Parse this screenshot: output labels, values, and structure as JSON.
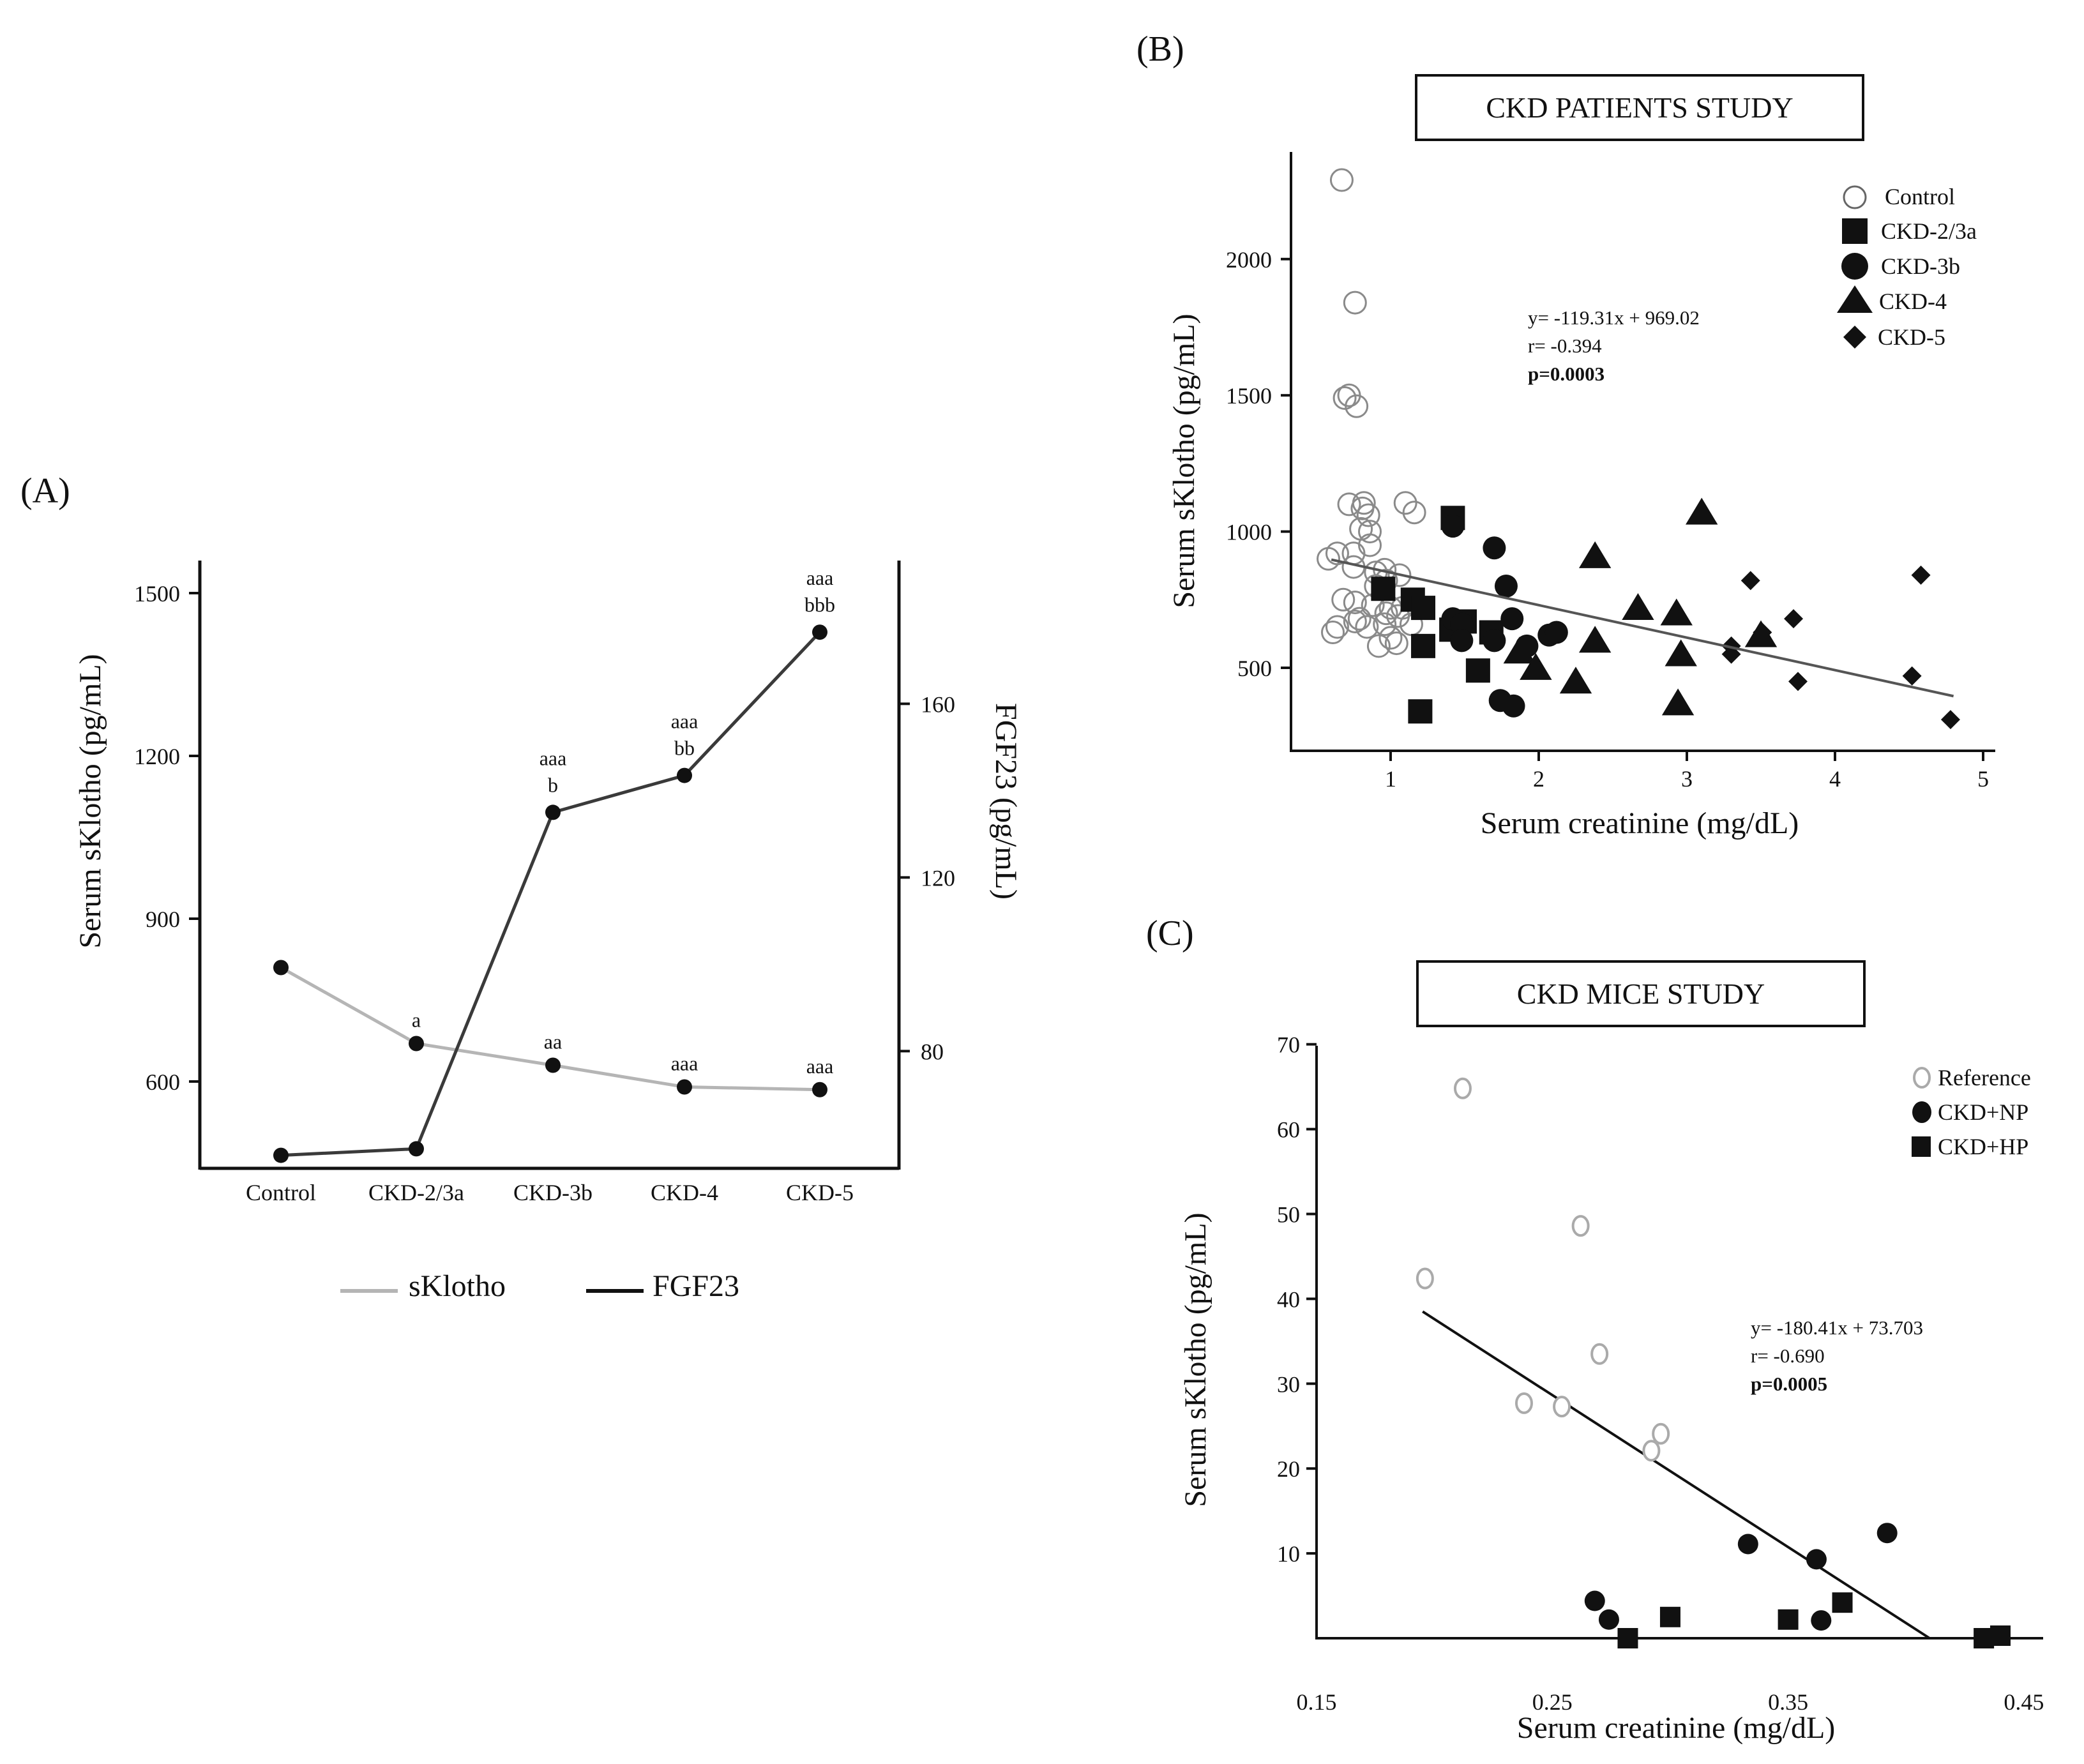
{
  "chart_data": [
    {
      "panel": "(A)",
      "type": "line",
      "categories": [
        "Control",
        "CKD-2/3a",
        "CKD-3b",
        "CKD-4",
        "CKD-5"
      ],
      "ylabel_left": "Serum sKlotho (pg/mL)",
      "ylabel_right": "FGF23 (pg/mL)",
      "left_ticks": [
        "600",
        "900",
        "1200",
        "1500"
      ],
      "right_ticks": [
        "80",
        "120",
        "160"
      ],
      "ylim_left": [
        440,
        1560
      ],
      "ylim_right": [
        53,
        193
      ],
      "series": [
        {
          "name": "sKlotho",
          "axis": "left",
          "color": "#b5b5b5",
          "values": [
            810,
            670,
            630,
            590,
            585
          ]
        },
        {
          "name": "FGF23",
          "axis": "right",
          "color": "#3a3a3a",
          "values": [
            56,
            57.5,
            135,
            143.5,
            176.5
          ]
        }
      ],
      "annotations": {
        "sKlotho": [
          "",
          "a",
          "aa",
          "aaa",
          "aaa"
        ],
        "FGF23_line1": [
          "",
          "",
          "aaa",
          "aaa",
          "aaa"
        ],
        "FGF23_line2": [
          "",
          "",
          "b",
          "bb",
          "bbb"
        ]
      },
      "legend": [
        "sKlotho",
        "FGF23"
      ]
    },
    {
      "panel": "(B)",
      "type": "scatter",
      "title": "CKD PATIENTS  STUDY",
      "xlabel": "Serum creatinine (mg/dL)",
      "ylabel": "Serum sKlotho (pg/mL)",
      "x_ticks": [
        "1",
        "2",
        "3",
        "4",
        "5"
      ],
      "y_ticks": [
        "500",
        "1000",
        "1500",
        "2000"
      ],
      "xlim": [
        0.35,
        5
      ],
      "ylim": [
        200,
        2420
      ],
      "equation": "y= -119.31x + 969.02",
      "r": "r= -0.394",
      "p": "p=0.0003",
      "regression": {
        "x": [
          0.6,
          4.8
        ],
        "y": [
          897,
          396
        ]
      },
      "legend": [
        "Control",
        "CKD-2/3a",
        "CKD-3b",
        "CKD-4",
        "CKD-5"
      ],
      "series": [
        {
          "name": "Control",
          "marker": "open-circle",
          "points": [
            [
              0.67,
              2290
            ],
            [
              0.76,
              1840
            ],
            [
              0.72,
              1500
            ],
            [
              0.69,
              1490
            ],
            [
              0.77,
              1460
            ],
            [
              0.72,
              1100
            ],
            [
              0.82,
              1105
            ],
            [
              0.81,
              1085
            ],
            [
              0.85,
              1060
            ],
            [
              1.1,
              1105
            ],
            [
              1.16,
              1070
            ],
            [
              0.8,
              1010
            ],
            [
              0.86,
              1000
            ],
            [
              0.86,
              950
            ],
            [
              0.75,
              920
            ],
            [
              0.58,
              900
            ],
            [
              0.64,
              920
            ],
            [
              0.75,
              870
            ],
            [
              0.9,
              850
            ],
            [
              0.96,
              860
            ],
            [
              1.06,
              840
            ],
            [
              0.97,
              820
            ],
            [
              0.9,
              800
            ],
            [
              0.68,
              750
            ],
            [
              0.76,
              740
            ],
            [
              0.88,
              730
            ],
            [
              1.0,
              720
            ],
            [
              1.08,
              720
            ],
            [
              0.97,
              700
            ],
            [
              1.05,
              690
            ],
            [
              0.79,
              680
            ],
            [
              0.76,
              670
            ],
            [
              0.96,
              660
            ],
            [
              1.14,
              660
            ],
            [
              0.84,
              650
            ],
            [
              0.64,
              650
            ],
            [
              0.61,
              630
            ],
            [
              1.0,
              610
            ],
            [
              1.04,
              590
            ],
            [
              0.92,
              580
            ]
          ]
        },
        {
          "name": "CKD-2/3a",
          "marker": "square",
          "points": [
            [
              1.42,
              1050
            ],
            [
              0.95,
              790
            ],
            [
              1.15,
              750
            ],
            [
              1.22,
              720
            ],
            [
              1.5,
              670
            ],
            [
              1.41,
              640
            ],
            [
              1.68,
              630
            ],
            [
              1.22,
              580
            ],
            [
              1.59,
              490
            ],
            [
              1.2,
              340
            ]
          ]
        },
        {
          "name": "CKD-3b",
          "marker": "circle",
          "points": [
            [
              1.42,
              1020
            ],
            [
              1.7,
              940
            ],
            [
              1.78,
              800
            ],
            [
              1.42,
              680
            ],
            [
              1.82,
              680
            ],
            [
              1.48,
              660
            ],
            [
              2.07,
              620
            ],
            [
              2.12,
              630
            ],
            [
              1.48,
              600
            ],
            [
              1.7,
              600
            ],
            [
              1.92,
              580
            ],
            [
              1.74,
              380
            ],
            [
              1.83,
              360
            ]
          ]
        },
        {
          "name": "CKD-4",
          "marker": "triangle",
          "points": [
            [
              3.1,
              1070
            ],
            [
              2.38,
              910
            ],
            [
              2.67,
              720
            ],
            [
              2.93,
              700
            ],
            [
              2.38,
              600
            ],
            [
              3.5,
              620
            ],
            [
              1.87,
              560
            ],
            [
              2.96,
              550
            ],
            [
              1.98,
              500
            ],
            [
              2.25,
              450
            ],
            [
              2.94,
              370
            ]
          ]
        },
        {
          "name": "CKD-5",
          "marker": "diamond",
          "points": [
            [
              3.43,
              820
            ],
            [
              4.58,
              840
            ],
            [
              3.72,
              680
            ],
            [
              3.51,
              630
            ],
            [
              3.3,
              580
            ],
            [
              3.3,
              550
            ],
            [
              3.75,
              450
            ],
            [
              4.52,
              470
            ],
            [
              4.78,
              310
            ]
          ]
        }
      ]
    },
    {
      "panel": "(C)",
      "type": "scatter",
      "title": "CKD MICE STUDY",
      "xlabel": "Serum creatinine (mg/dL)",
      "ylabel": "Serum sKlotho (pg/mL)",
      "x_ticks": [
        "0.15",
        "0.25",
        "0.35",
        "0.45"
      ],
      "y_ticks": [
        "10",
        "20",
        "30",
        "40",
        "50",
        "60",
        "70"
      ],
      "xlim": [
        0.15,
        0.455
      ],
      "ylim": [
        0,
        70
      ],
      "equation": "y= -180.41x + 73.703",
      "r": "r= -0.690",
      "p": "p=0.0005",
      "regression": {
        "x": [
          0.195,
          0.41
        ],
        "y": [
          38.5,
          0
        ]
      },
      "legend": [
        "Reference",
        "CKD+NP",
        "CKD+HP"
      ],
      "series": [
        {
          "name": "Reference",
          "marker": "open-circle",
          "points": [
            [
              0.212,
              64.8
            ],
            [
              0.262,
              48.6
            ],
            [
              0.196,
              42.4
            ],
            [
              0.27,
              33.5
            ],
            [
              0.238,
              27.7
            ],
            [
              0.254,
              27.3
            ],
            [
              0.292,
              22.1
            ],
            [
              0.296,
              24.1
            ]
          ]
        },
        {
          "name": "CKD+NP",
          "marker": "circle",
          "points": [
            [
              0.333,
              11.1
            ],
            [
              0.362,
              9.3
            ],
            [
              0.392,
              12.4
            ],
            [
              0.268,
              4.4
            ],
            [
              0.274,
              2.2
            ],
            [
              0.364,
              2.1
            ]
          ]
        },
        {
          "name": "CKD+HP",
          "marker": "square",
          "points": [
            [
              0.282,
              0.0
            ],
            [
              0.3,
              2.5
            ],
            [
              0.35,
              2.2
            ],
            [
              0.373,
              4.2
            ],
            [
              0.433,
              0.0
            ],
            [
              0.44,
              0.3
            ]
          ]
        }
      ]
    }
  ]
}
